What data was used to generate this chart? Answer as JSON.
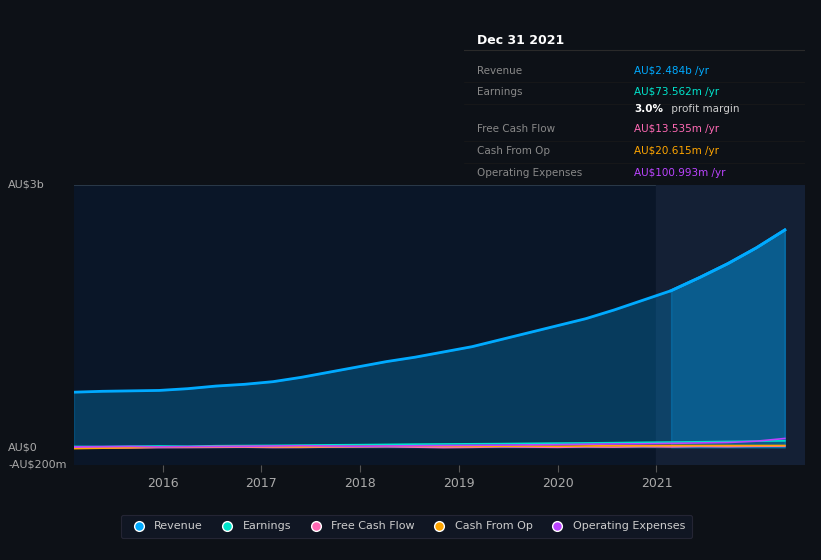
{
  "bg_color": "#0d1117",
  "chart_bg": "#0a1628",
  "highlight_bg": "#142035",
  "title": "Dec 31 2021",
  "tooltip_rows": [
    {
      "label": "Revenue",
      "value": "AU$2.484b /yr",
      "color": "#00aaff"
    },
    {
      "label": "Earnings",
      "value": "AU$73.562m /yr",
      "color": "#00e5cc"
    },
    {
      "label": "",
      "value_bold": "3.0%",
      "value_rest": " profit margin",
      "color_bold": "#ffffff",
      "color": "#cccccc"
    },
    {
      "label": "Free Cash Flow",
      "value": "AU$13.535m /yr",
      "color": "#ff69b4"
    },
    {
      "label": "Cash From Op",
      "value": "AU$20.615m /yr",
      "color": "#ffa500"
    },
    {
      "label": "Operating Expenses",
      "value": "AU$100.993m /yr",
      "color": "#bb44ff"
    }
  ],
  "ylabel_top": "AU$3b",
  "ylabel_zero": "AU$0",
  "ylabel_neg": "-AU$200m",
  "x_ticks": [
    2016,
    2017,
    2018,
    2019,
    2020,
    2021
  ],
  "legend": [
    {
      "label": "Revenue",
      "color": "#00aaff"
    },
    {
      "label": "Earnings",
      "color": "#00e5cc"
    },
    {
      "label": "Free Cash Flow",
      "color": "#ff69b4"
    },
    {
      "label": "Cash From Op",
      "color": "#ffa500"
    },
    {
      "label": "Operating Expenses",
      "color": "#bb44ff"
    }
  ],
  "revenue": [
    630,
    640,
    645,
    650,
    670,
    700,
    720,
    750,
    800,
    860,
    920,
    980,
    1030,
    1090,
    1150,
    1230,
    1310,
    1390,
    1470,
    1570,
    1680,
    1790,
    1940,
    2100,
    2280,
    2484
  ],
  "earnings": [
    10,
    8,
    12,
    15,
    12,
    18,
    20,
    22,
    25,
    28,
    30,
    33,
    36,
    38,
    40,
    42,
    45,
    48,
    50,
    53,
    57,
    60,
    63,
    67,
    70,
    73.562
  ],
  "free_cash_flow": [
    -5,
    -8,
    -6,
    -3,
    -2,
    0,
    2,
    -2,
    -1,
    3,
    5,
    7,
    2,
    -3,
    0,
    5,
    3,
    0,
    5,
    3,
    8,
    5,
    10,
    8,
    12,
    13.535
  ],
  "cash_from_op": [
    -15,
    -10,
    -5,
    2,
    5,
    8,
    10,
    8,
    5,
    8,
    10,
    12,
    15,
    12,
    10,
    12,
    15,
    12,
    15,
    18,
    18,
    20,
    20,
    20,
    20,
    20.615
  ],
  "operating_expenses": [
    5,
    8,
    10,
    5,
    8,
    10,
    12,
    15,
    18,
    15,
    12,
    15,
    18,
    20,
    22,
    25,
    28,
    30,
    35,
    38,
    40,
    45,
    50,
    55,
    70,
    100.993
  ],
  "ylim": [
    -200,
    3000
  ],
  "xlim_start": 2015.1,
  "xlim_end": 2022.5,
  "highlight_x_start": 2021.0,
  "revenue_color": "#00aaff",
  "earnings_color": "#00e5cc",
  "fcf_color": "#ff69b4",
  "cashop_color": "#ffa500",
  "opex_color": "#bb44ff"
}
